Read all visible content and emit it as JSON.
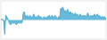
{
  "chart_data": {
    "type": "area",
    "values": [
      0.0,
      0.5,
      0.2,
      -0.5,
      -6.0,
      2.0,
      1.5,
      0.5,
      -0.5,
      -1.5,
      -2.0,
      -1.5,
      -1.0,
      -1.5,
      -1.0,
      -1.5,
      -2.0,
      -1.5,
      -1.0,
      -1.5,
      -0.5,
      -1.5,
      -1.0,
      2.5,
      3.5,
      2.0,
      1.0,
      2.0,
      1.5,
      1.0,
      2.0,
      1.5,
      1.0,
      1.5,
      2.5,
      1.5,
      1.0,
      1.5,
      1.0,
      2.0,
      1.0,
      1.5,
      1.0,
      0.5,
      1.0,
      1.5,
      0.5,
      1.0,
      1.5,
      1.0,
      2.0,
      1.5,
      1.0,
      2.0,
      1.5,
      1.0,
      2.0,
      1.5,
      1.0,
      0.5,
      1.5,
      1.0,
      5.0,
      4.0,
      5.5,
      4.5,
      3.5,
      4.0,
      3.0,
      4.5,
      3.5,
      2.5,
      3.5,
      2.5,
      3.0,
      2.5,
      2.0,
      3.0,
      2.0,
      2.5,
      2.0,
      1.5,
      2.5,
      2.0,
      1.5,
      2.0,
      1.5,
      2.0,
      1.5,
      2.0,
      3.0,
      2.0,
      1.5,
      2.0,
      1.0,
      2.0,
      1.5,
      2.5,
      1.5,
      2.0,
      2.5,
      1.5,
      2.0,
      1.5,
      1.0,
      1.5,
      1.0,
      1.5,
      1.0,
      0.5
    ],
    "baseline": 0,
    "ylim": [
      -8,
      8
    ],
    "color": "#4bafd4",
    "tick_labels": false
  }
}
